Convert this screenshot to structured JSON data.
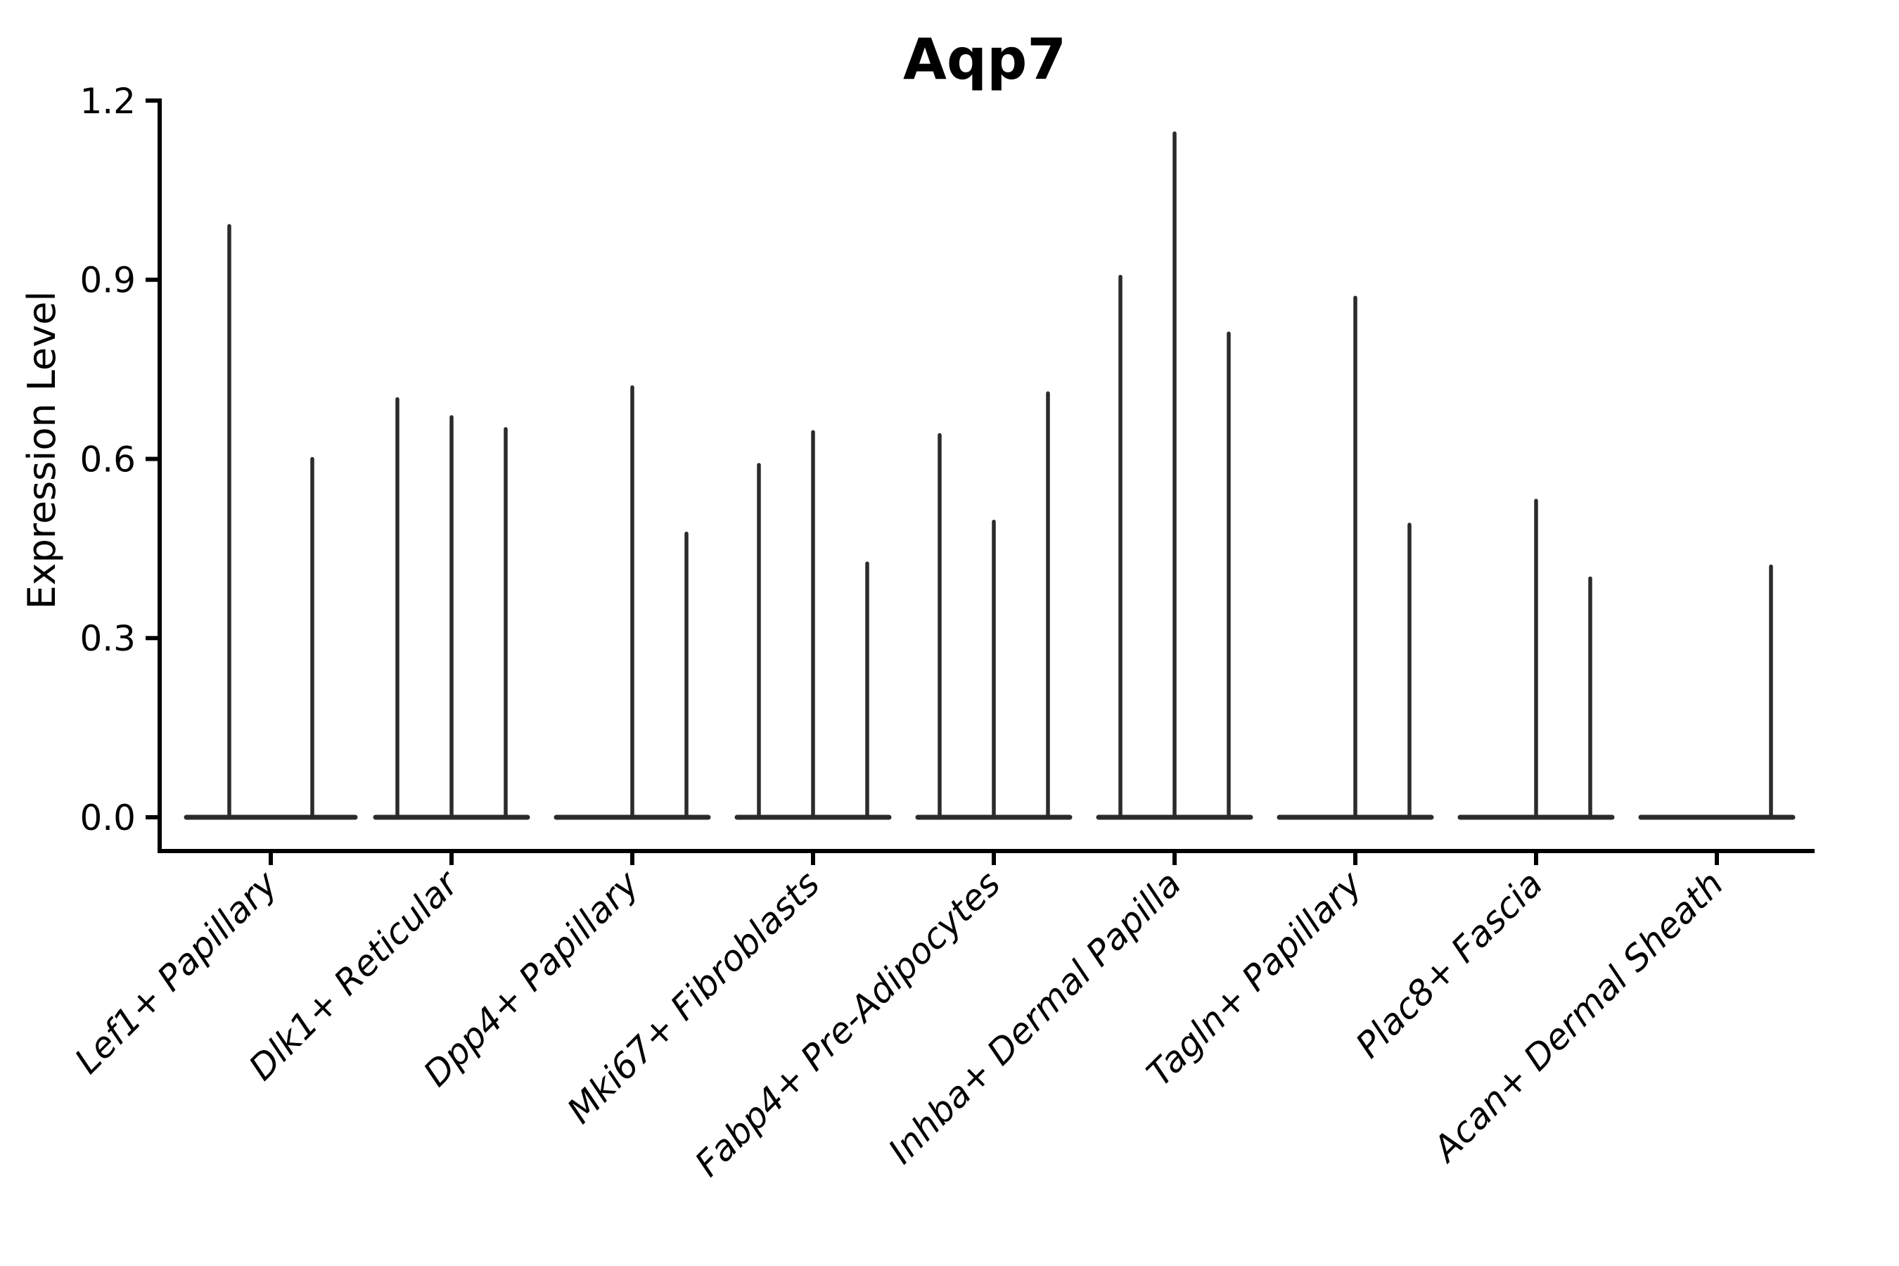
{
  "figure": {
    "background_color": "#ffffff",
    "axis_color": "#000000",
    "violin_line_color": "#2b2b2b"
  },
  "chart_data": {
    "type": "violin",
    "title": "Aqp7",
    "xlabel": "",
    "ylabel": "Expression Level",
    "ylim": [
      0.0,
      1.2
    ],
    "yticks": [
      0.0,
      0.3,
      0.6,
      0.9,
      1.2
    ],
    "ytick_labels": [
      "0.0",
      "0.3",
      "0.6",
      "0.9",
      "1.2"
    ],
    "grid": false,
    "legend": "none",
    "style": "collapsed-spike-violins (distributions concentrated at 0 with thin tail to max)",
    "categories": [
      "Lef1+ Papillary",
      "Dlk1+ Reticular",
      "Dpp4+ Papillary",
      "Mki67+ Fibroblasts",
      "Fabp4+ Pre-Adipocytes",
      "Inhba+ Dermal Papilla",
      "Tagln+ Papillary",
      "Plac8+ Fascia",
      "Acan+ Dermal Sheath"
    ],
    "series": [
      {
        "category": "Lef1+ Papillary",
        "n_slots": 2,
        "violin_max": [
          0.99,
          0.6
        ]
      },
      {
        "category": "Dlk1+ Reticular",
        "n_slots": 3,
        "violin_max": [
          0.7,
          0.67,
          0.65
        ]
      },
      {
        "category": "Dpp4+ Papillary",
        "n_slots": 3,
        "violin_max": [
          null,
          0.72,
          0.475
        ]
      },
      {
        "category": "Mki67+ Fibroblasts",
        "n_slots": 3,
        "violin_max": [
          0.59,
          0.645,
          0.425
        ]
      },
      {
        "category": "Fabp4+ Pre-Adipocytes",
        "n_slots": 3,
        "violin_max": [
          0.64,
          0.495,
          0.71
        ]
      },
      {
        "category": "Inhba+ Dermal Papilla",
        "n_slots": 3,
        "violin_max": [
          0.905,
          1.145,
          0.81
        ]
      },
      {
        "category": "Tagln+ Papillary",
        "n_slots": 3,
        "violin_max": [
          null,
          0.87,
          0.49
        ]
      },
      {
        "category": "Plac8+ Fascia",
        "n_slots": 3,
        "violin_max": [
          null,
          0.53,
          0.4
        ]
      },
      {
        "category": "Acan+ Dermal Sheath",
        "n_slots": 3,
        "violin_max": [
          null,
          null,
          0.42
        ]
      }
    ]
  }
}
